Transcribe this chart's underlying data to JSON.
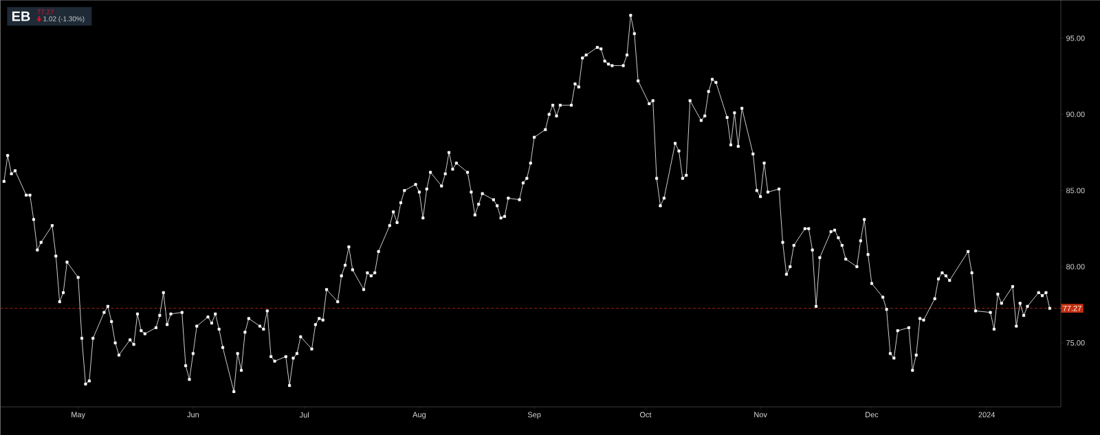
{
  "chart_data": {
    "type": "line",
    "annotations": [
      "EB",
      "77.27",
      "1.02 (-1.30%)"
    ],
    "x": [
      "2023-04-11",
      "2023-04-12",
      "2023-04-13",
      "2023-04-14",
      "2023-04-17",
      "2023-04-18",
      "2023-04-19",
      "2023-04-20",
      "2023-04-21",
      "2023-04-24",
      "2023-04-25",
      "2023-04-26",
      "2023-04-27",
      "2023-04-28",
      "2023-05-01",
      "2023-05-02",
      "2023-05-03",
      "2023-05-04",
      "2023-05-05",
      "2023-05-08",
      "2023-05-09",
      "2023-05-10",
      "2023-05-11",
      "2023-05-12",
      "2023-05-15",
      "2023-05-16",
      "2023-05-17",
      "2023-05-18",
      "2023-05-19",
      "2023-05-22",
      "2023-05-23",
      "2023-05-24",
      "2023-05-25",
      "2023-05-26",
      "2023-05-29",
      "2023-05-30",
      "2023-05-31",
      "2023-06-01",
      "2023-06-02",
      "2023-06-05",
      "2023-06-06",
      "2023-06-07",
      "2023-06-08",
      "2023-06-09",
      "2023-06-12",
      "2023-06-13",
      "2023-06-14",
      "2023-06-15",
      "2023-06-16",
      "2023-06-19",
      "2023-06-20",
      "2023-06-21",
      "2023-06-22",
      "2023-06-23",
      "2023-06-26",
      "2023-06-27",
      "2023-06-28",
      "2023-06-29",
      "2023-06-30",
      "2023-07-03",
      "2023-07-04",
      "2023-07-05",
      "2023-07-06",
      "2023-07-07",
      "2023-07-10",
      "2023-07-11",
      "2023-07-12",
      "2023-07-13",
      "2023-07-14",
      "2023-07-17",
      "2023-07-18",
      "2023-07-19",
      "2023-07-20",
      "2023-07-21",
      "2023-07-24",
      "2023-07-25",
      "2023-07-26",
      "2023-07-27",
      "2023-07-28",
      "2023-07-31",
      "2023-08-01",
      "2023-08-02",
      "2023-08-03",
      "2023-08-04",
      "2023-08-07",
      "2023-08-08",
      "2023-08-09",
      "2023-08-10",
      "2023-08-11",
      "2023-08-14",
      "2023-08-15",
      "2023-08-16",
      "2023-08-17",
      "2023-08-18",
      "2023-08-21",
      "2023-08-22",
      "2023-08-23",
      "2023-08-24",
      "2023-08-25",
      "2023-08-28",
      "2023-08-29",
      "2023-08-30",
      "2023-08-31",
      "2023-09-01",
      "2023-09-04",
      "2023-09-05",
      "2023-09-06",
      "2023-09-07",
      "2023-09-08",
      "2023-09-11",
      "2023-09-12",
      "2023-09-13",
      "2023-09-14",
      "2023-09-15",
      "2023-09-18",
      "2023-09-19",
      "2023-09-20",
      "2023-09-21",
      "2023-09-22",
      "2023-09-25",
      "2023-09-26",
      "2023-09-27",
      "2023-09-28",
      "2023-09-29",
      "2023-10-02",
      "2023-10-03",
      "2023-10-04",
      "2023-10-05",
      "2023-10-06",
      "2023-10-09",
      "2023-10-10",
      "2023-10-11",
      "2023-10-12",
      "2023-10-13",
      "2023-10-16",
      "2023-10-17",
      "2023-10-18",
      "2023-10-19",
      "2023-10-20",
      "2023-10-23",
      "2023-10-24",
      "2023-10-25",
      "2023-10-26",
      "2023-10-27",
      "2023-10-30",
      "2023-10-31",
      "2023-11-01",
      "2023-11-02",
      "2023-11-03",
      "2023-11-06",
      "2023-11-07",
      "2023-11-08",
      "2023-11-09",
      "2023-11-10",
      "2023-11-13",
      "2023-11-14",
      "2023-11-15",
      "2023-11-16",
      "2023-11-17",
      "2023-11-20",
      "2023-11-21",
      "2023-11-22",
      "2023-11-23",
      "2023-11-24",
      "2023-11-27",
      "2023-11-28",
      "2023-11-29",
      "2023-11-30",
      "2023-12-01",
      "2023-12-04",
      "2023-12-05",
      "2023-12-06",
      "2023-12-07",
      "2023-12-08",
      "2023-12-11",
      "2023-12-12",
      "2023-12-13",
      "2023-12-14",
      "2023-12-15",
      "2023-12-18",
      "2023-12-19",
      "2023-12-20",
      "2023-12-21",
      "2023-12-22",
      "2023-12-27",
      "2023-12-28",
      "2023-12-29",
      "2024-01-02",
      "2024-01-03",
      "2024-01-04",
      "2024-01-05",
      "2024-01-08",
      "2024-01-09",
      "2024-01-10",
      "2024-01-11",
      "2024-01-12",
      "2024-01-15",
      "2024-01-16",
      "2024-01-17",
      "2024-01-18"
    ],
    "series": [
      {
        "color": "#e6e6e6",
        "values": [
          85.6,
          87.3,
          86.1,
          86.3,
          84.7,
          84.7,
          83.1,
          81.1,
          81.6,
          82.7,
          80.7,
          77.7,
          78.3,
          80.3,
          79.3,
          75.3,
          72.3,
          72.5,
          75.3,
          77.0,
          77.4,
          76.4,
          75.0,
          74.2,
          75.2,
          74.9,
          76.9,
          75.8,
          75.6,
          76.0,
          76.8,
          78.3,
          76.2,
          76.9,
          77.0,
          73.5,
          72.6,
          74.3,
          76.1,
          76.7,
          76.3,
          76.9,
          75.9,
          74.7,
          71.8,
          74.3,
          73.2,
          75.7,
          76.6,
          76.1,
          75.9,
          77.1,
          74.1,
          73.8,
          74.1,
          72.2,
          74.0,
          74.3,
          75.4,
          74.6,
          76.2,
          76.6,
          76.5,
          78.5,
          77.7,
          79.4,
          80.1,
          81.3,
          79.8,
          78.5,
          79.6,
          79.4,
          79.6,
          81.0,
          82.7,
          83.6,
          82.9,
          84.2,
          85.0,
          85.4,
          84.9,
          83.2,
          85.1,
          86.2,
          85.3,
          86.1,
          87.5,
          86.4,
          86.8,
          86.2,
          84.9,
          83.4,
          84.1,
          84.8,
          84.4,
          84.0,
          83.2,
          83.3,
          84.5,
          84.4,
          85.5,
          85.8,
          86.8,
          88.5,
          89.0,
          90.0,
          90.6,
          89.9,
          90.6,
          90.6,
          92.0,
          91.8,
          93.7,
          93.9,
          94.4,
          94.3,
          93.5,
          93.3,
          93.2,
          93.2,
          93.9,
          96.5,
          95.3,
          92.2,
          90.7,
          90.9,
          85.8,
          84.0,
          84.5,
          88.1,
          87.6,
          85.8,
          86.0,
          90.9,
          89.6,
          89.9,
          91.5,
          92.3,
          92.1,
          89.8,
          88.0,
          90.1,
          87.9,
          90.4,
          87.4,
          85.0,
          84.6,
          86.8,
          84.9,
          85.1,
          81.6,
          79.5,
          80.0,
          81.4,
          82.5,
          82.5,
          81.1,
          77.4,
          80.6,
          82.3,
          82.4,
          81.9,
          81.4,
          80.5,
          80.0,
          81.7,
          83.1,
          80.8,
          78.9,
          78.0,
          77.2,
          74.3,
          74.0,
          75.8,
          76.0,
          73.2,
          74.2,
          76.6,
          76.5,
          77.9,
          79.2,
          79.6,
          79.4,
          79.1,
          81.0,
          79.6,
          77.1,
          77.0,
          75.9,
          78.2,
          77.6,
          78.7,
          76.1,
          77.6,
          76.8,
          77.4,
          78.3,
          78.1,
          78.3,
          77.27
        ]
      }
    ],
    "xlim": [
      "2023-04-10",
      "2024-01-21"
    ],
    "xticks": [
      {
        "value": "2023-05-01",
        "label": "May"
      },
      {
        "value": "2023-06-01",
        "label": "Jun"
      },
      {
        "value": "2023-07-01",
        "label": "Jul"
      },
      {
        "value": "2023-08-01",
        "label": "Aug"
      },
      {
        "value": "2023-09-01",
        "label": "Sep"
      },
      {
        "value": "2023-10-01",
        "label": "Oct"
      },
      {
        "value": "2023-11-01",
        "label": "Nov"
      },
      {
        "value": "2023-12-01",
        "label": "Dec"
      },
      {
        "value": "2024-01-01",
        "label": "2024"
      }
    ],
    "ylim": [
      70.8,
      97.5
    ],
    "yticks": [
      {
        "value": 75,
        "label": "75.00"
      },
      {
        "value": 80,
        "label": "80.00"
      },
      {
        "value": 85,
        "label": "85.00"
      },
      {
        "value": 90,
        "label": "90.00"
      },
      {
        "value": 95,
        "label": "95.00"
      }
    ],
    "ref_lines": [
      {
        "axis": "y",
        "value": 77.27,
        "label": "77.27",
        "color": "#c4300f",
        "line_style": "dashed"
      }
    ],
    "marker": "square",
    "line_style": "solid"
  }
}
